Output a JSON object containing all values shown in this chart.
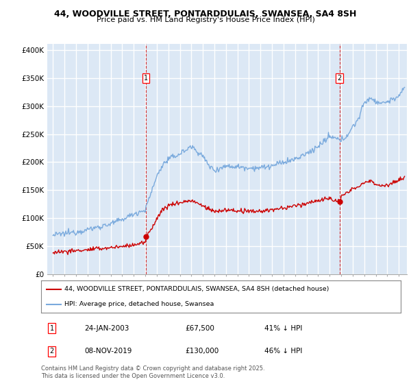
{
  "title": "44, WOODVILLE STREET, PONTARDDULAIS, SWANSEA, SA4 8SH",
  "subtitle": "Price paid vs. HM Land Registry's House Price Index (HPI)",
  "ylabel_ticks": [
    "£0",
    "£50K",
    "£100K",
    "£150K",
    "£200K",
    "£250K",
    "£300K",
    "£350K",
    "£400K"
  ],
  "ytick_values": [
    0,
    50000,
    100000,
    150000,
    200000,
    250000,
    300000,
    350000,
    400000
  ],
  "ylim": [
    0,
    410000
  ],
  "xlim_start": 1994.5,
  "xlim_end": 2025.7,
  "background_color": "#dce8f5",
  "grid_color": "#ffffff",
  "sale1_x": 2003.07,
  "sale1_y": 67500,
  "sale1_label": "1",
  "sale1_date": "24-JAN-2003",
  "sale1_price": "£67,500",
  "sale1_hpi": "41% ↓ HPI",
  "sale2_x": 2019.85,
  "sale2_y": 130000,
  "sale2_label": "2",
  "sale2_date": "08-NOV-2019",
  "sale2_price": "£130,000",
  "sale2_hpi": "46% ↓ HPI",
  "legend_line1": "44, WOODVILLE STREET, PONTARDDULAIS, SWANSEA, SA4 8SH (detached house)",
  "legend_line2": "HPI: Average price, detached house, Swansea",
  "footer": "Contains HM Land Registry data © Crown copyright and database right 2025.\nThis data is licensed under the Open Government Licence v3.0.",
  "red_color": "#cc0000",
  "blue_color": "#7aaadd",
  "title_fontsize": 9,
  "subtitle_fontsize": 8
}
